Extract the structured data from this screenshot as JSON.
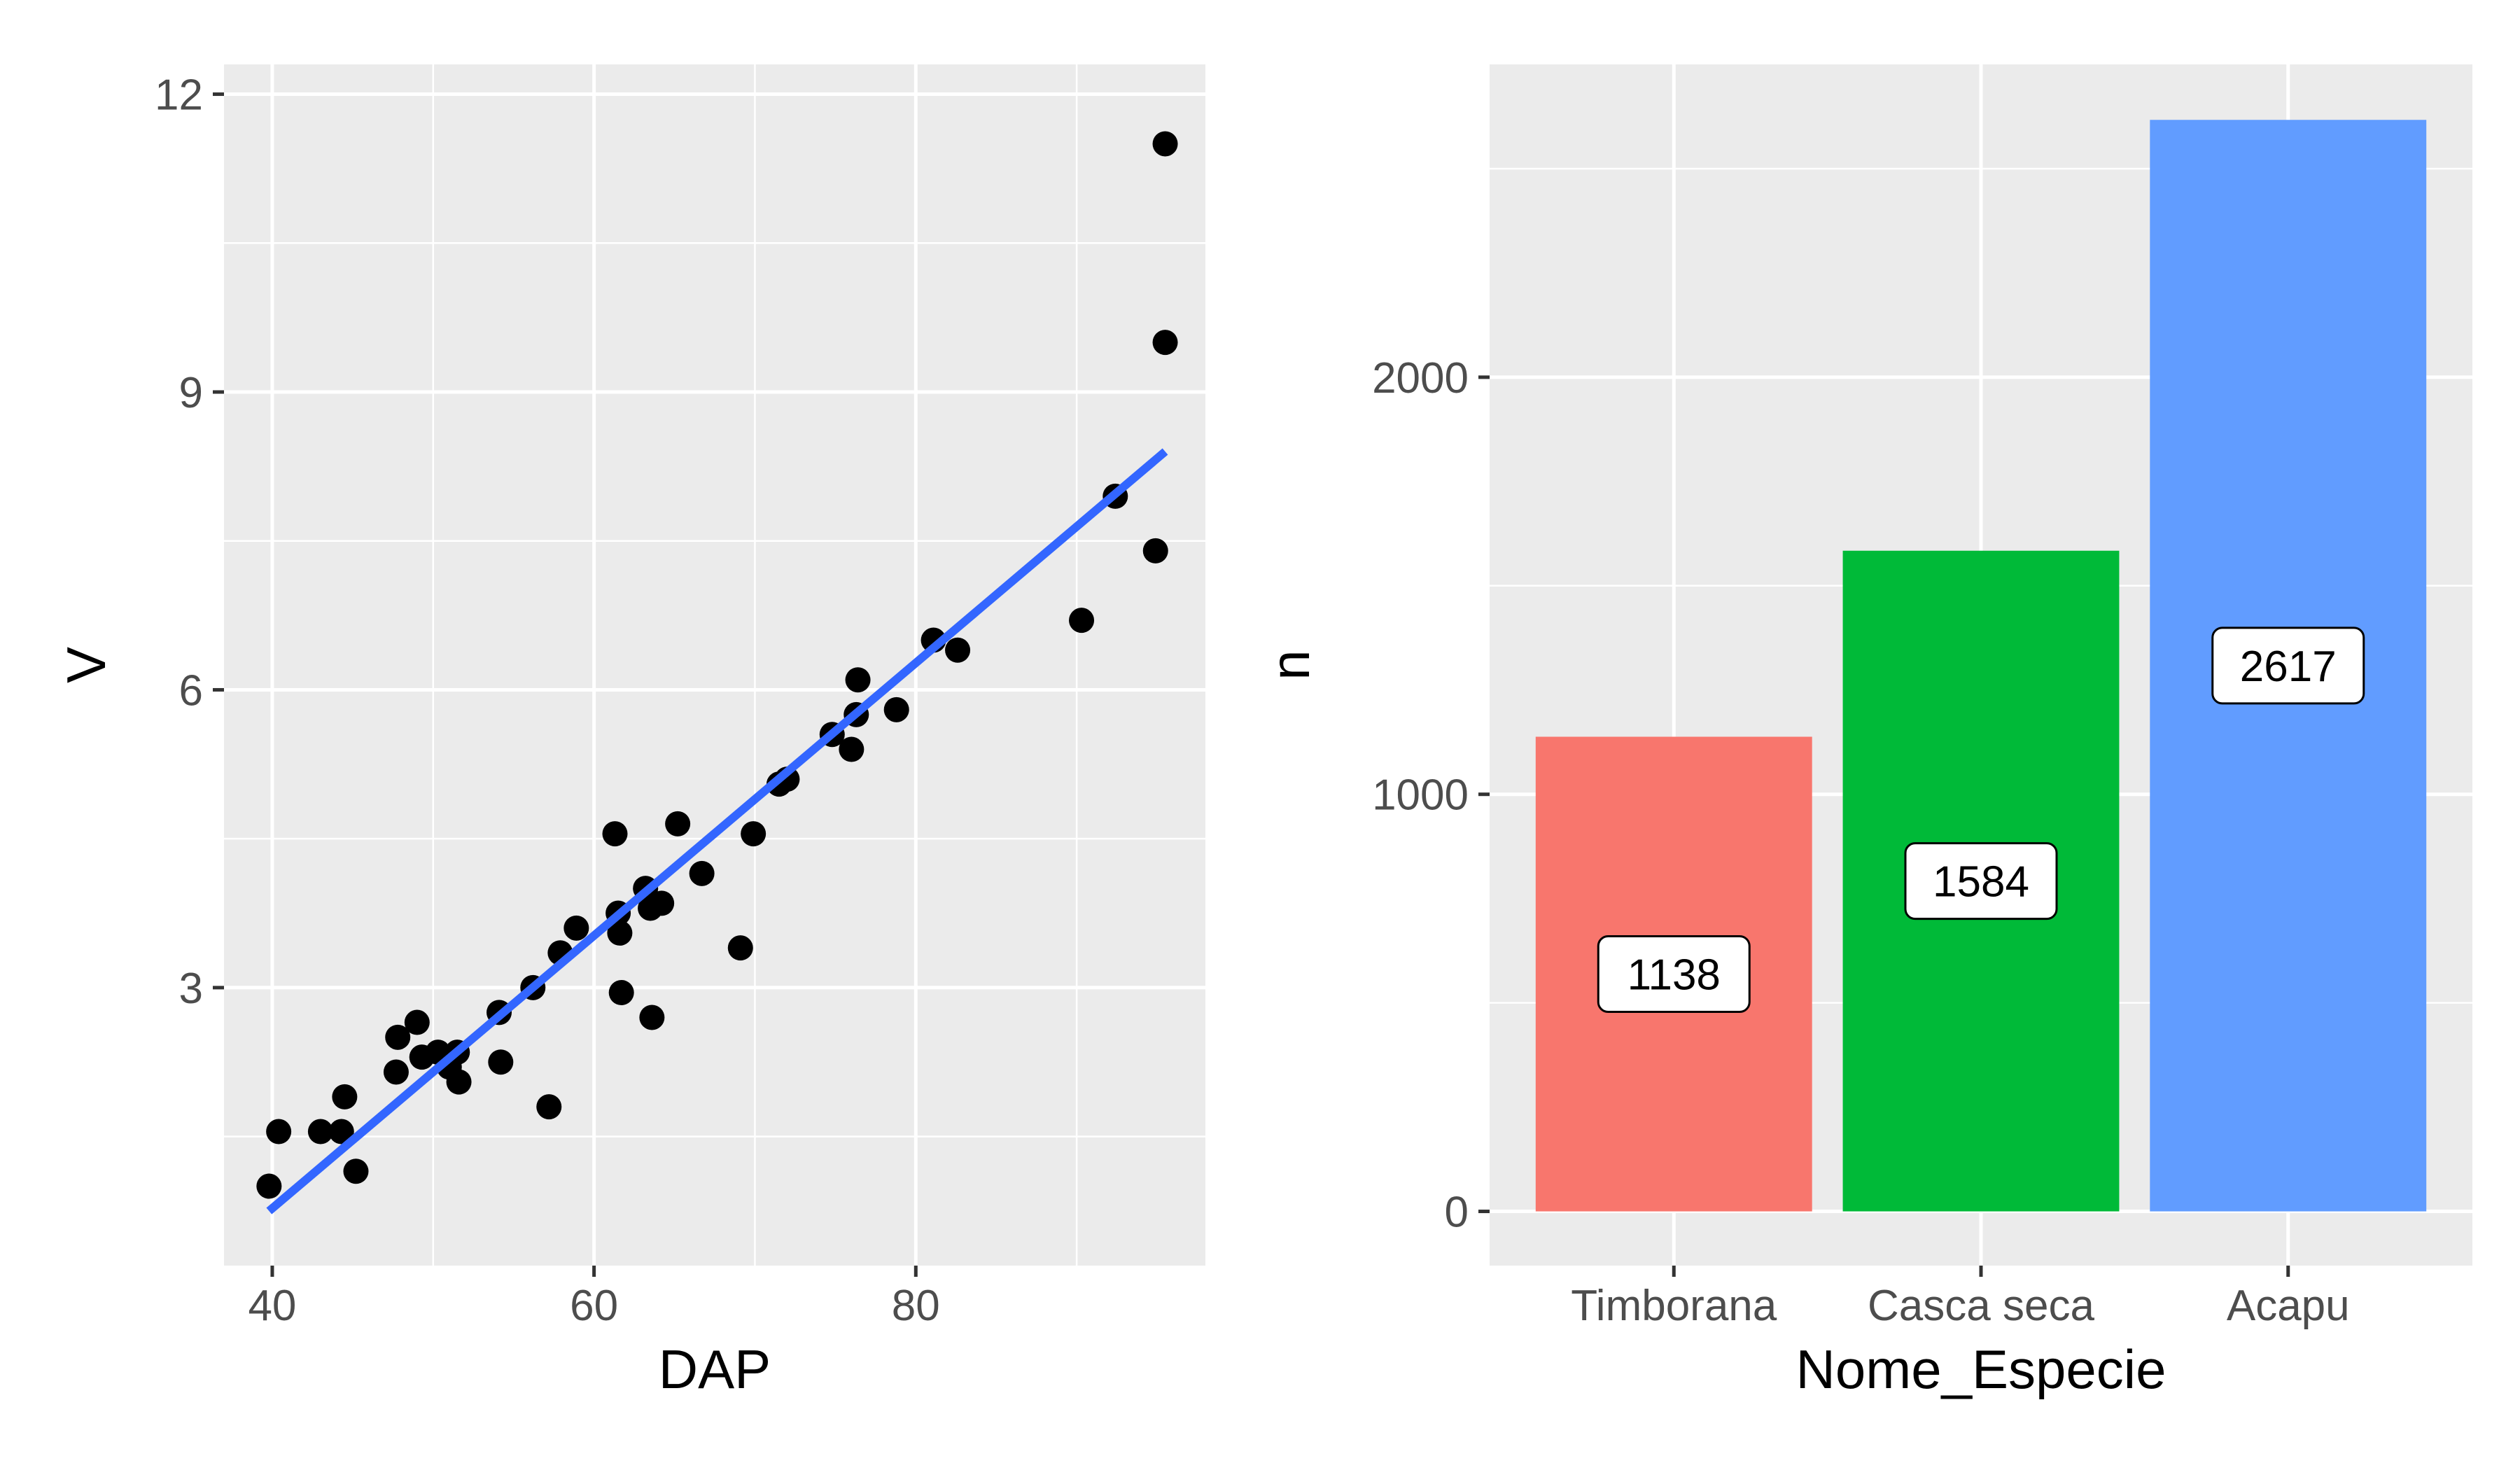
{
  "chart_data": [
    {
      "type": "scatter",
      "title": "",
      "xlabel": "DAP",
      "ylabel": "V",
      "xlim": [
        37,
        98
      ],
      "ylim": [
        0.2,
        12.3
      ],
      "x_ticks": [
        40,
        60,
        80
      ],
      "y_ticks": [
        3,
        6,
        9,
        12
      ],
      "grid": true,
      "points": [
        {
          "x": 39.8,
          "y": 1.0
        },
        {
          "x": 40.4,
          "y": 1.55
        },
        {
          "x": 43.0,
          "y": 1.55
        },
        {
          "x": 44.3,
          "y": 1.55
        },
        {
          "x": 44.5,
          "y": 1.9
        },
        {
          "x": 45.2,
          "y": 1.15
        },
        {
          "x": 47.7,
          "y": 2.15
        },
        {
          "x": 47.8,
          "y": 2.5
        },
        {
          "x": 49.0,
          "y": 2.65
        },
        {
          "x": 49.3,
          "y": 2.3
        },
        {
          "x": 50.3,
          "y": 2.35
        },
        {
          "x": 51.0,
          "y": 2.2
        },
        {
          "x": 51.5,
          "y": 2.35
        },
        {
          "x": 51.6,
          "y": 2.05
        },
        {
          "x": 54.1,
          "y": 2.75
        },
        {
          "x": 54.2,
          "y": 2.25
        },
        {
          "x": 56.2,
          "y": 3.0
        },
        {
          "x": 57.2,
          "y": 1.8
        },
        {
          "x": 57.9,
          "y": 3.35
        },
        {
          "x": 58.9,
          "y": 3.6
        },
        {
          "x": 61.3,
          "y": 4.55
        },
        {
          "x": 61.5,
          "y": 3.75
        },
        {
          "x": 61.6,
          "y": 3.55
        },
        {
          "x": 61.7,
          "y": 2.95
        },
        {
          "x": 63.2,
          "y": 4.0
        },
        {
          "x": 63.5,
          "y": 3.8
        },
        {
          "x": 63.6,
          "y": 2.7
        },
        {
          "x": 64.2,
          "y": 3.85
        },
        {
          "x": 65.2,
          "y": 4.65
        },
        {
          "x": 66.7,
          "y": 4.15
        },
        {
          "x": 69.1,
          "y": 3.4
        },
        {
          "x": 69.9,
          "y": 4.55
        },
        {
          "x": 71.5,
          "y": 5.05
        },
        {
          "x": 72.0,
          "y": 5.1
        },
        {
          "x": 74.8,
          "y": 5.55
        },
        {
          "x": 76.0,
          "y": 5.4
        },
        {
          "x": 76.3,
          "y": 5.75
        },
        {
          "x": 76.4,
          "y": 6.1
        },
        {
          "x": 78.8,
          "y": 5.8
        },
        {
          "x": 81.1,
          "y": 6.5
        },
        {
          "x": 82.6,
          "y": 6.4
        },
        {
          "x": 90.3,
          "y": 6.7
        },
        {
          "x": 92.4,
          "y": 7.95
        },
        {
          "x": 94.9,
          "y": 7.4
        },
        {
          "x": 95.5,
          "y": 9.5
        },
        {
          "x": 95.5,
          "y": 11.5
        }
      ],
      "fit_line": {
        "x": [
          39.8,
          95.5
        ],
        "y": [
          0.75,
          8.4
        ],
        "color": "#3366FF"
      },
      "point_color": "#000000",
      "panel_background": "#EBEBEB"
    },
    {
      "type": "bar",
      "title": "",
      "xlabel": "Nome_Especie",
      "ylabel": "n",
      "ylim": [
        -130,
        2750
      ],
      "y_ticks": [
        0,
        1000,
        2000
      ],
      "categories": [
        "Timborana",
        "Casca seca",
        "Acapu"
      ],
      "values": [
        1138,
        1584,
        2617
      ],
      "data_labels": [
        "1138",
        "1584",
        "2617"
      ],
      "colors": [
        "#F8766D",
        "#00BA38",
        "#619CFF"
      ],
      "grid": true,
      "panel_background": "#EBEBEB"
    }
  ]
}
